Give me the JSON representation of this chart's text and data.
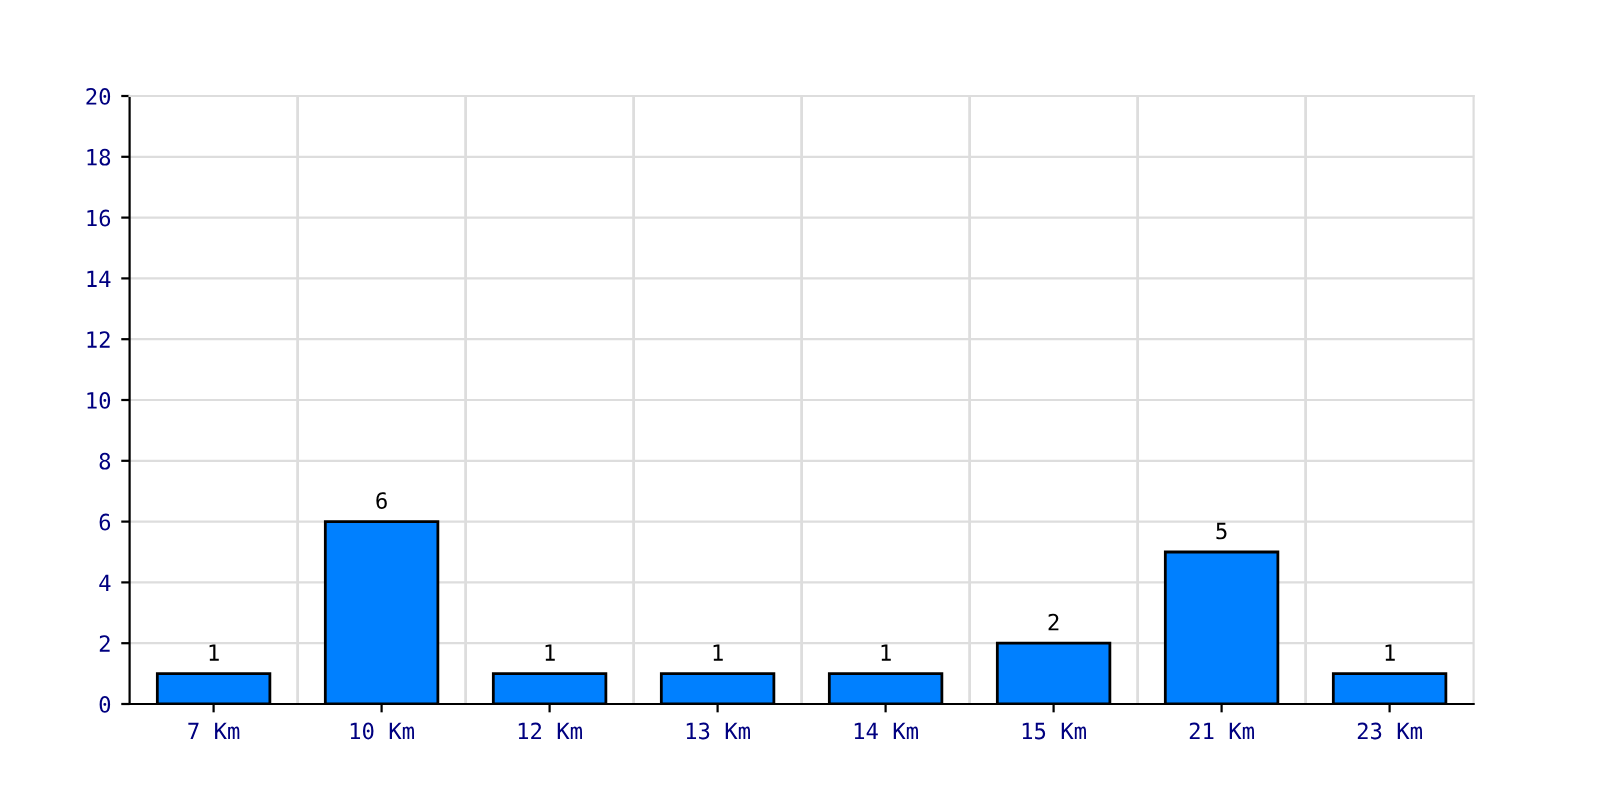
{
  "chart_data": {
    "type": "bar",
    "categories": [
      "7 Km",
      "10 Km",
      "12 Km",
      "13 Km",
      "14 Km",
      "15 Km",
      "21 Km",
      "23 Km"
    ],
    "values": [
      1,
      6,
      1,
      1,
      1,
      2,
      5,
      1
    ],
    "color": "#0080ff",
    "ylim": [
      0,
      20
    ],
    "yticks": [
      0,
      2,
      4,
      6,
      8,
      10,
      12,
      14,
      16,
      18,
      20
    ],
    "grid": true,
    "data_labels": true
  }
}
